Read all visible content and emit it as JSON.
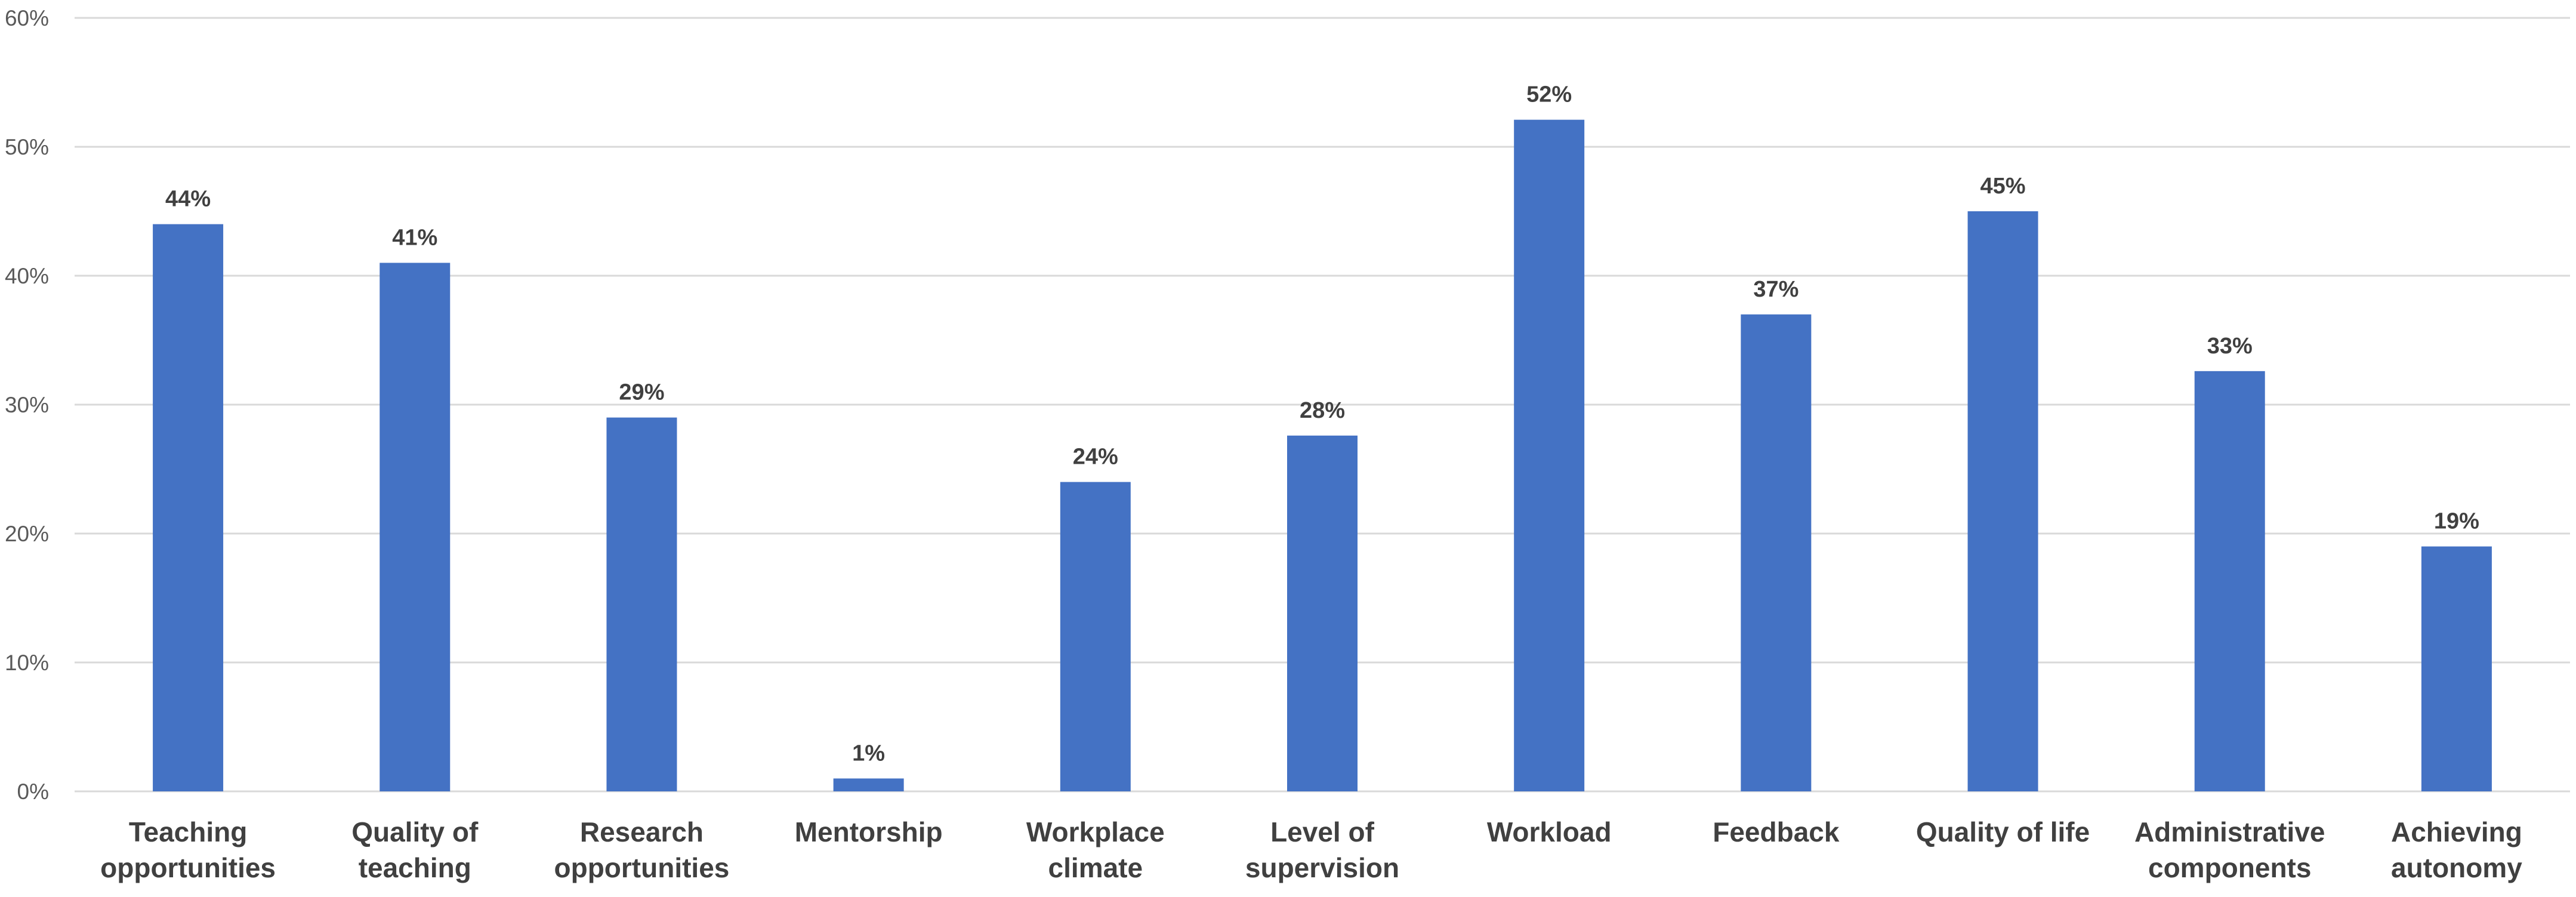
{
  "chart_data": {
    "type": "bar",
    "title": "",
    "xlabel": "",
    "ylabel": "",
    "categories": [
      [
        "Teaching",
        "opportunities"
      ],
      [
        "Quality of",
        "teaching"
      ],
      [
        "Research",
        "opportunities"
      ],
      [
        "Mentorship"
      ],
      [
        "Workplace",
        "climate"
      ],
      [
        "Level of",
        "supervision"
      ],
      [
        "Workload"
      ],
      [
        "Feedback"
      ],
      [
        "Quality of life"
      ],
      [
        "Administrative",
        "components"
      ],
      [
        "Achieving",
        "autonomy"
      ]
    ],
    "values": [
      44,
      41,
      29,
      1,
      24,
      27.6,
      52.1,
      37,
      45,
      32.6,
      19
    ],
    "data_labels": [
      "44%",
      "41%",
      "29%",
      "1%",
      "24%",
      "28%",
      "52%",
      "37%",
      "45%",
      "33%",
      "19%"
    ],
    "yticks": [
      0,
      10,
      20,
      30,
      40,
      50,
      60
    ],
    "ytick_labels": [
      "0%",
      "10%",
      "20%",
      "30%",
      "40%",
      "50%",
      "60%"
    ],
    "ylim": [
      0,
      60
    ],
    "grid": true,
    "legend": false,
    "colors": {
      "bar": "#4472c4",
      "grid": "#d9d9d9"
    }
  }
}
